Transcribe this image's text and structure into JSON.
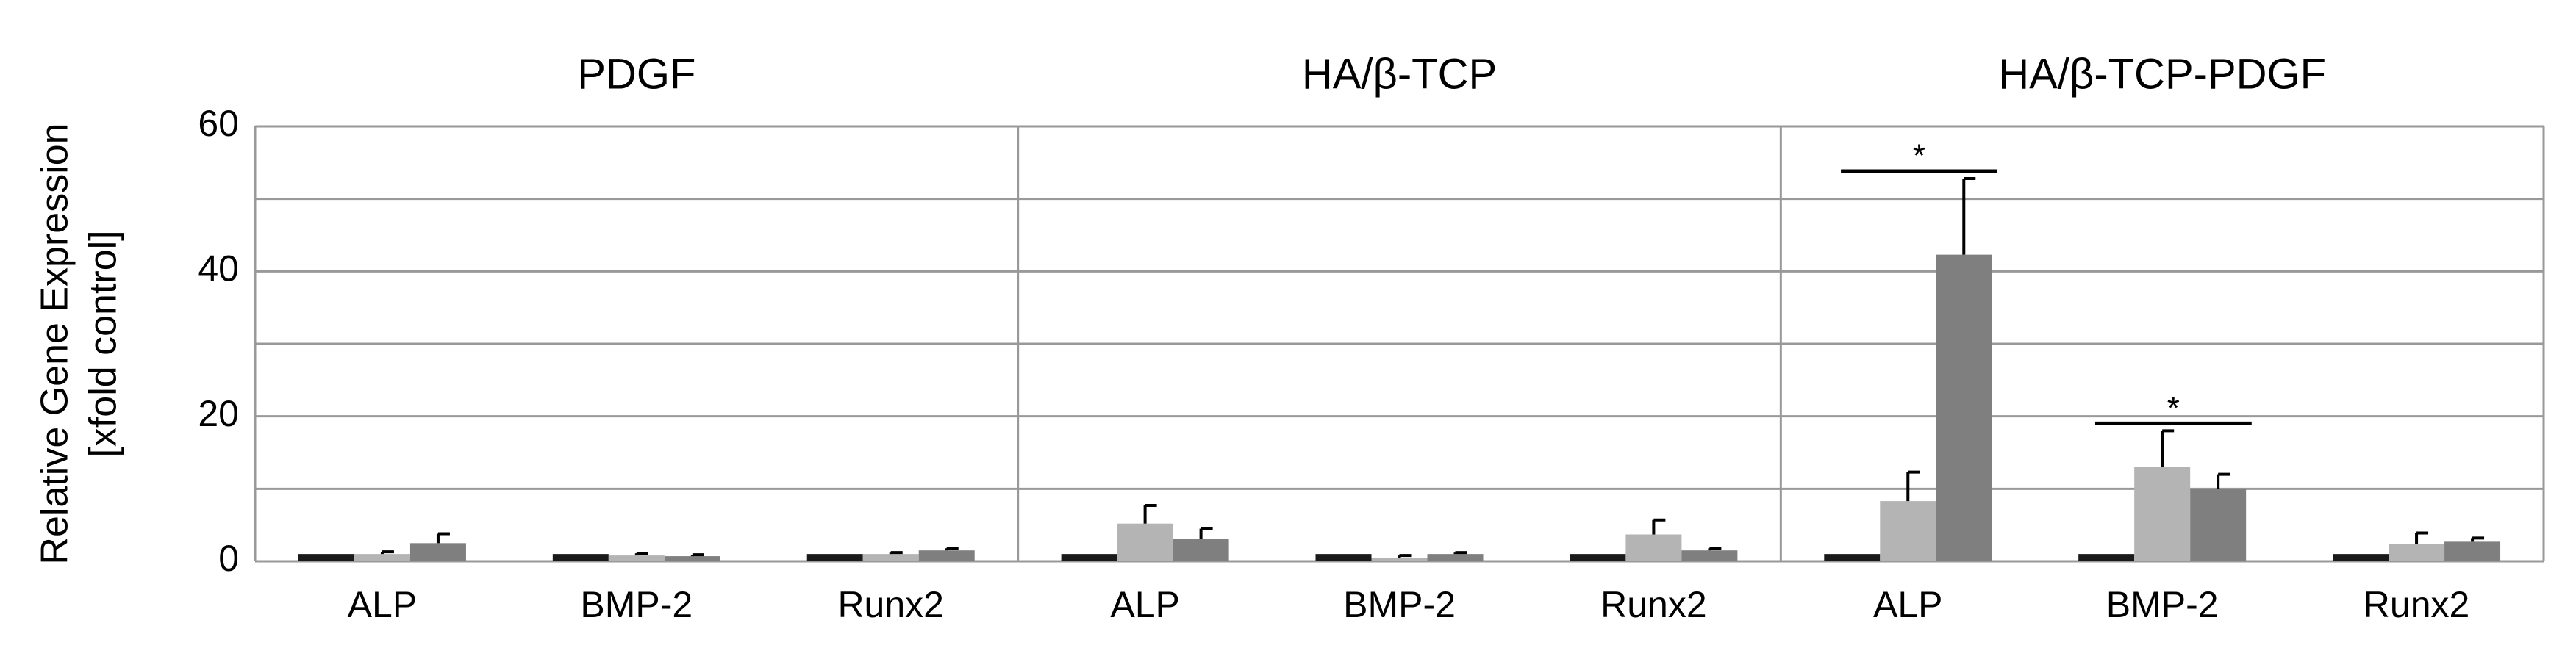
{
  "chart_data": [
    {
      "type": "bar",
      "title": "PDGF",
      "y_label": [
        "Relative Gene Expression",
        "[xfold control]"
      ],
      "ylim": [
        0,
        60
      ],
      "yticks": [
        0,
        20,
        40,
        60
      ],
      "minor_gridlines": [
        10,
        30,
        50
      ],
      "grid": true,
      "categories": [
        "ALP",
        "BMP-2",
        "Runx2"
      ],
      "series": [
        {
          "color": "#1a1a1a",
          "values": [
            1,
            1,
            1
          ],
          "errors": [
            null,
            null,
            null
          ]
        },
        {
          "color": "#b4b4b4",
          "values": [
            1,
            0.8,
            1
          ],
          "errors": [
            0.3,
            0.3,
            0.2
          ]
        },
        {
          "color": "#7f7f7f",
          "values": [
            2.5,
            0.7,
            1.5
          ],
          "errors": [
            1.3,
            0.2,
            0.3
          ]
        }
      ]
    },
    {
      "type": "bar",
      "title": "HA/β-TCP",
      "categories": [
        "ALP",
        "BMP-2",
        "Runx2"
      ],
      "series": [
        {
          "color": "#1a1a1a",
          "values": [
            1,
            1,
            1
          ],
          "errors": [
            null,
            null,
            null
          ]
        },
        {
          "color": "#b4b4b4",
          "values": [
            5.2,
            0.5,
            3.7
          ],
          "errors": [
            2.5,
            0.3,
            2
          ]
        },
        {
          "color": "#7f7f7f",
          "values": [
            3.1,
            1,
            1.5
          ],
          "errors": [
            1.4,
            0.2,
            0.3
          ]
        }
      ]
    },
    {
      "type": "bar",
      "title": "HA/β-TCP-PDGF",
      "categories": [
        "ALP",
        "BMP-2",
        "Runx2"
      ],
      "significance": [
        "*",
        "*",
        null
      ],
      "series": [
        {
          "color": "#1a1a1a",
          "values": [
            1,
            1,
            1
          ],
          "errors": [
            null,
            null,
            null
          ]
        },
        {
          "color": "#b4b4b4",
          "values": [
            8.3,
            13,
            2.4
          ],
          "errors": [
            4,
            5,
            1.5
          ]
        },
        {
          "color": "#7f7f7f",
          "values": [
            42.3,
            10,
            2.7
          ],
          "errors": [
            10.5,
            2,
            0.5
          ]
        }
      ]
    }
  ]
}
